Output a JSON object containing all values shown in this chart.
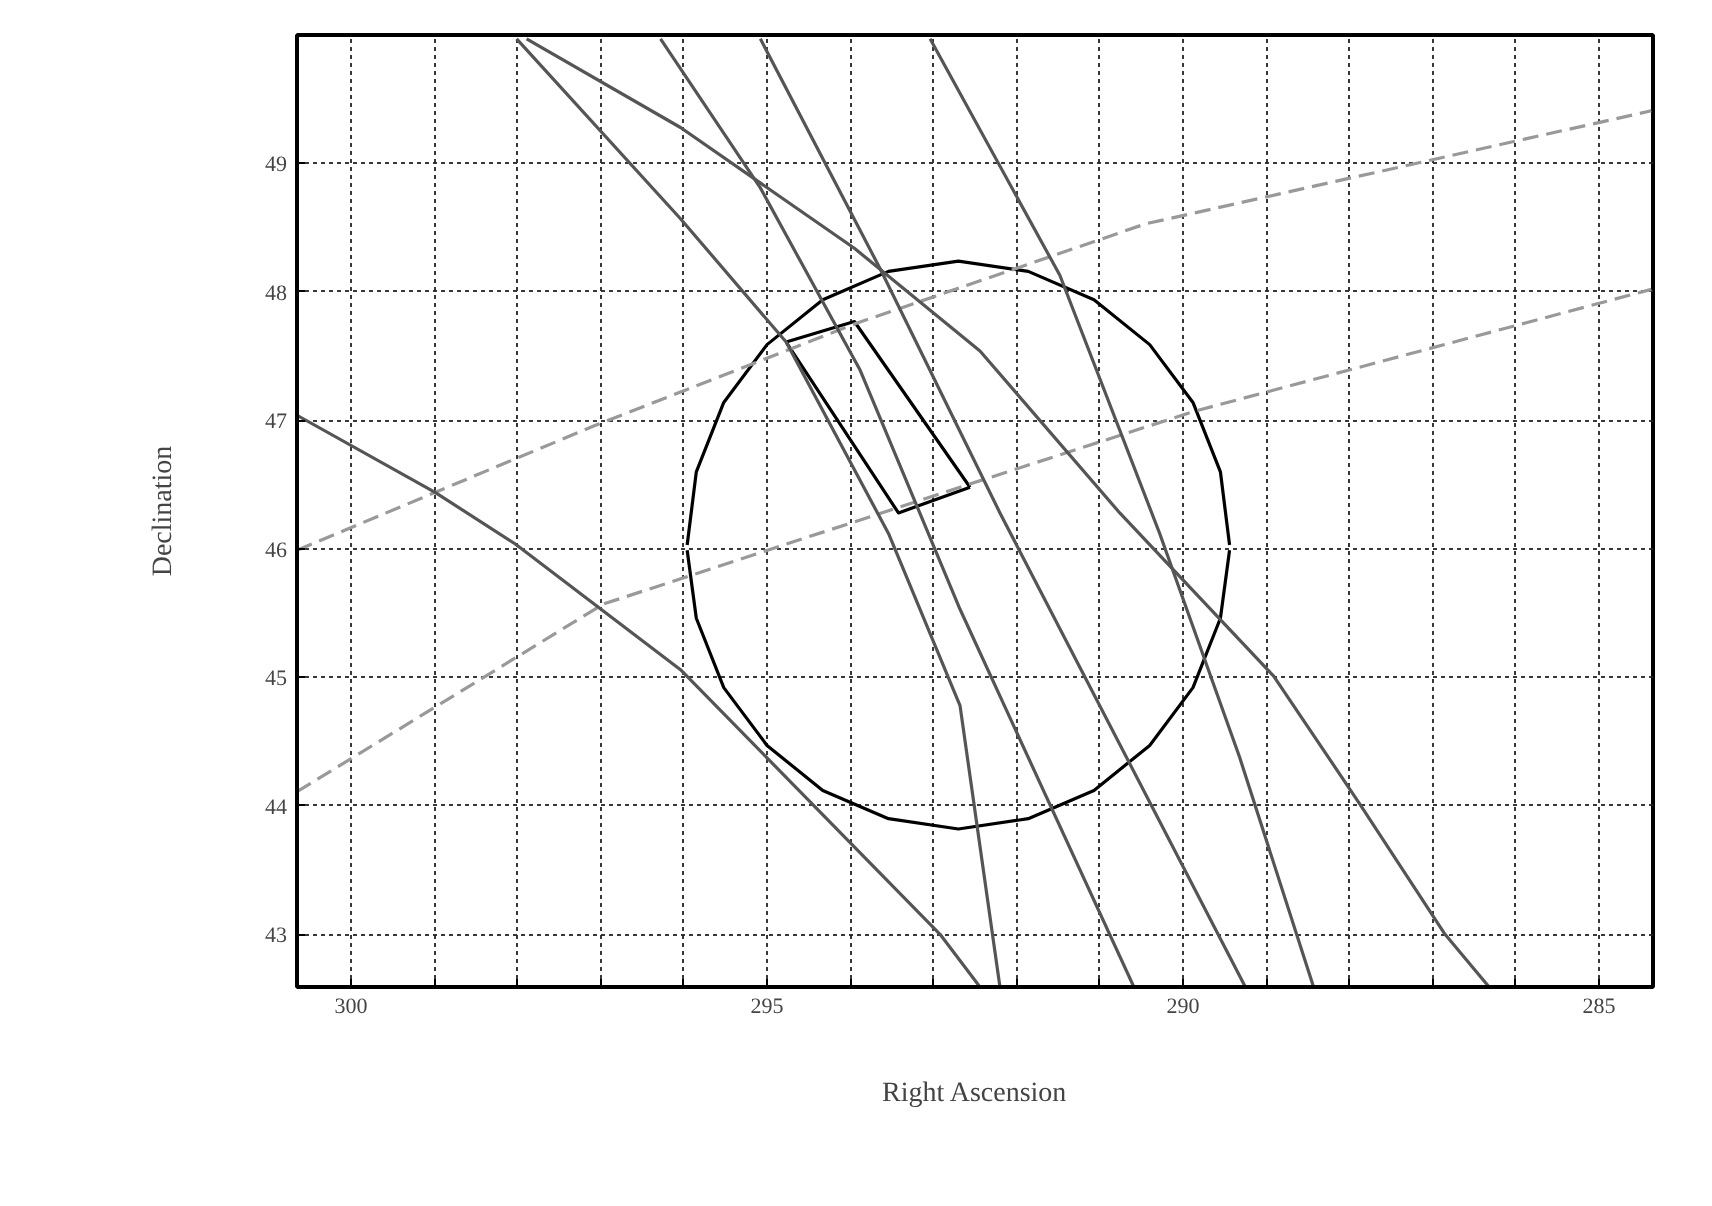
{
  "chart_data": {
    "type": "line",
    "xlabel": "Right Ascension",
    "ylabel": "Declination",
    "xlim": [
      300.65,
      284.35
    ],
    "ylim": [
      42.59,
      50.0
    ],
    "xticks": [
      300,
      {
        "value": 299,
        "label": null
      },
      {
        "value": 298,
        "label": null
      },
      {
        "value": 297,
        "label": null
      },
      {
        "value": 296,
        "label": null
      },
      295,
      {
        "value": 294,
        "label": null
      },
      {
        "value": 293,
        "label": null
      },
      {
        "value": 292,
        "label": null
      },
      {
        "value": 291,
        "label": null
      },
      290,
      {
        "value": 289,
        "label": null
      },
      {
        "value": 288,
        "label": null
      },
      {
        "value": 287,
        "label": null
      },
      {
        "value": 286,
        "label": null
      },
      285
    ],
    "yticks": [
      43,
      44,
      45,
      46,
      47,
      48,
      49
    ],
    "grid": true,
    "marker": "none",
    "series": [
      {
        "color": "#000000",
        "line_style": "solid",
        "x": [
          295.96,
          295.85,
          295.52,
          295.0,
          294.33,
          293.54,
          292.7,
          291.86,
          291.07,
          290.4,
          289.88,
          289.55,
          289.44
        ],
        "values": [
          46.03,
          46.6,
          47.14,
          47.59,
          47.94,
          48.16,
          48.24,
          48.16,
          47.94,
          47.59,
          47.14,
          46.6,
          46.03
        ]
      },
      {
        "color": "#000000",
        "line_style": "solid",
        "x": [
          289.44,
          289.55,
          289.88,
          290.4,
          291.07,
          291.86,
          292.7,
          293.54,
          294.33,
          295.0,
          295.52,
          295.85,
          295.96
        ],
        "values": [
          45.99,
          45.46,
          44.92,
          44.47,
          44.12,
          43.9,
          43.82,
          43.9,
          44.12,
          44.47,
          44.92,
          45.46,
          45.99
        ]
      },
      {
        "color": "#000000",
        "line_style": "solid",
        "x": [
          294.77,
          293.95,
          292.56
        ],
        "values": [
          47.61,
          47.77,
          46.48
        ]
      },
      {
        "color": "#000000",
        "line_style": "solid",
        "x": [
          294.77,
          293.42,
          292.56
        ],
        "values": [
          47.61,
          46.28,
          46.48
        ]
      },
      {
        "color": "#999999",
        "line_style": "dashed",
        "x": [
          300.65,
          297.07,
          293.95,
          290.45,
          284.37
        ],
        "values": [
          45.99,
          46.96,
          47.75,
          48.53,
          49.41
        ]
      },
      {
        "color": "#999999",
        "line_style": "dashed",
        "x": [
          300.65,
          296.97,
          292.68,
          289.87,
          284.37
        ],
        "values": [
          44.11,
          45.57,
          46.48,
          47.07,
          48.02
        ]
      },
      {
        "color": "#555555",
        "line_style": "solid",
        "x": [
          300.65,
          298.99,
          298.03,
          296.04,
          292.92,
          292.44
        ],
        "values": [
          47.04,
          46.44,
          46.04,
          45.06,
          43.0,
          42.59
        ]
      },
      {
        "color": "#555555",
        "line_style": "solid",
        "x": [
          298.01,
          296.04,
          294.77,
          293.54,
          292.68,
          292.2
        ],
        "values": [
          49.97,
          48.57,
          47.61,
          46.12,
          44.78,
          42.59
        ]
      },
      {
        "color": "#555555",
        "line_style": "solid",
        "x": [
          296.28,
          295.08,
          293.88,
          292.68,
          290.59
        ],
        "values": [
          49.97,
          48.81,
          47.39,
          45.53,
          42.59
        ]
      },
      {
        "color": "#555555",
        "line_style": "solid",
        "x": [
          295.08,
          293.64,
          292.2,
          289.25
        ],
        "values": [
          49.97,
          48.18,
          46.28,
          42.59
        ]
      },
      {
        "color": "#555555",
        "line_style": "solid",
        "x": [
          293.04,
          291.48,
          290.28,
          289.32,
          288.43
        ],
        "values": [
          49.97,
          48.13,
          46.12,
          44.38,
          42.59
        ]
      },
      {
        "color": "#555555",
        "line_style": "solid",
        "x": [
          297.89,
          296.04,
          293.95,
          292.44,
          290.76,
          288.91,
          287.88,
          286.85,
          286.32
        ],
        "values": [
          49.97,
          49.28,
          48.34,
          47.54,
          46.28,
          45.01,
          44.02,
          43.0,
          42.59
        ]
      }
    ]
  }
}
